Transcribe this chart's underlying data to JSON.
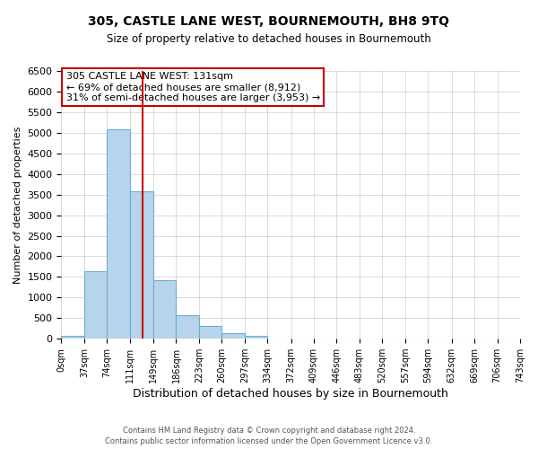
{
  "title": "305, CASTLE LANE WEST, BOURNEMOUTH, BH8 9TQ",
  "subtitle": "Size of property relative to detached houses in Bournemouth",
  "xlabel": "Distribution of detached houses by size in Bournemouth",
  "ylabel": "Number of detached properties",
  "bar_color": "#b8d4ea",
  "bar_edge_color": "#6aaed6",
  "background_color": "#ffffff",
  "grid_color": "#cccccc",
  "bin_edges": [
    0,
    37,
    74,
    111,
    149,
    186,
    223,
    260,
    297,
    334,
    372,
    409,
    446,
    483,
    520,
    557,
    594,
    632,
    669,
    706,
    743
  ],
  "bin_labels": [
    "0sqm",
    "37sqm",
    "74sqm",
    "111sqm",
    "149sqm",
    "186sqm",
    "223sqm",
    "260sqm",
    "297sqm",
    "334sqm",
    "372sqm",
    "409sqm",
    "446sqm",
    "483sqm",
    "520sqm",
    "557sqm",
    "594sqm",
    "632sqm",
    "669sqm",
    "706sqm",
    "743sqm"
  ],
  "counts": [
    60,
    1630,
    5080,
    3580,
    1420,
    580,
    305,
    140,
    60,
    10,
    5,
    0,
    0,
    0,
    0,
    0,
    0,
    0,
    0,
    0
  ],
  "property_line_x": 131,
  "annotation_line1": "305 CASTLE LANE WEST: 131sqm",
  "annotation_line2": "← 69% of detached houses are smaller (8,912)",
  "annotation_line3": "31% of semi-detached houses are larger (3,953) →",
  "annotation_box_color": "#cc0000",
  "ylim": [
    0,
    6500
  ],
  "yticks": [
    0,
    500,
    1000,
    1500,
    2000,
    2500,
    3000,
    3500,
    4000,
    4500,
    5000,
    5500,
    6000,
    6500
  ],
  "footer_line1": "Contains HM Land Registry data © Crown copyright and database right 2024.",
  "footer_line2": "Contains public sector information licensed under the Open Government Licence v3.0."
}
